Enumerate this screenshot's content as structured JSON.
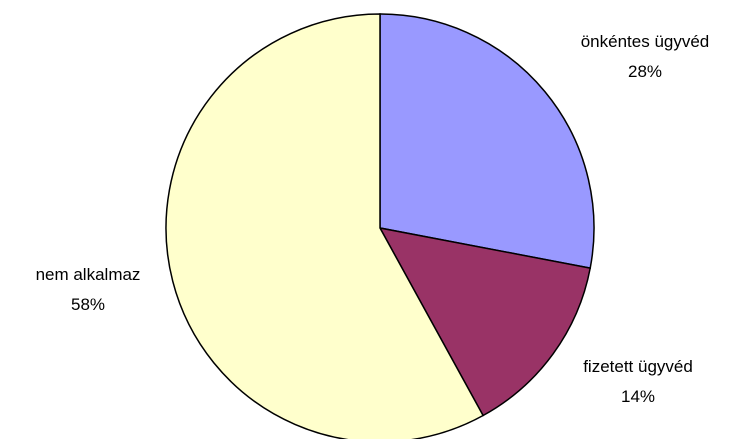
{
  "chart_data": {
    "type": "pie",
    "start_angle_deg": 0,
    "direction": "clockwise",
    "slices": [
      {
        "label": "önkéntes ügyvéd",
        "value_label": "28%",
        "value": 28,
        "color": "#9999ff"
      },
      {
        "label": "fizetett ügyvéd",
        "value_label": "14%",
        "value": 14,
        "color": "#993366"
      },
      {
        "label": "nem alkalmaz",
        "value_label": "58%",
        "value": 58,
        "color": "#ffffcc"
      }
    ],
    "stroke_color": "#000000"
  }
}
